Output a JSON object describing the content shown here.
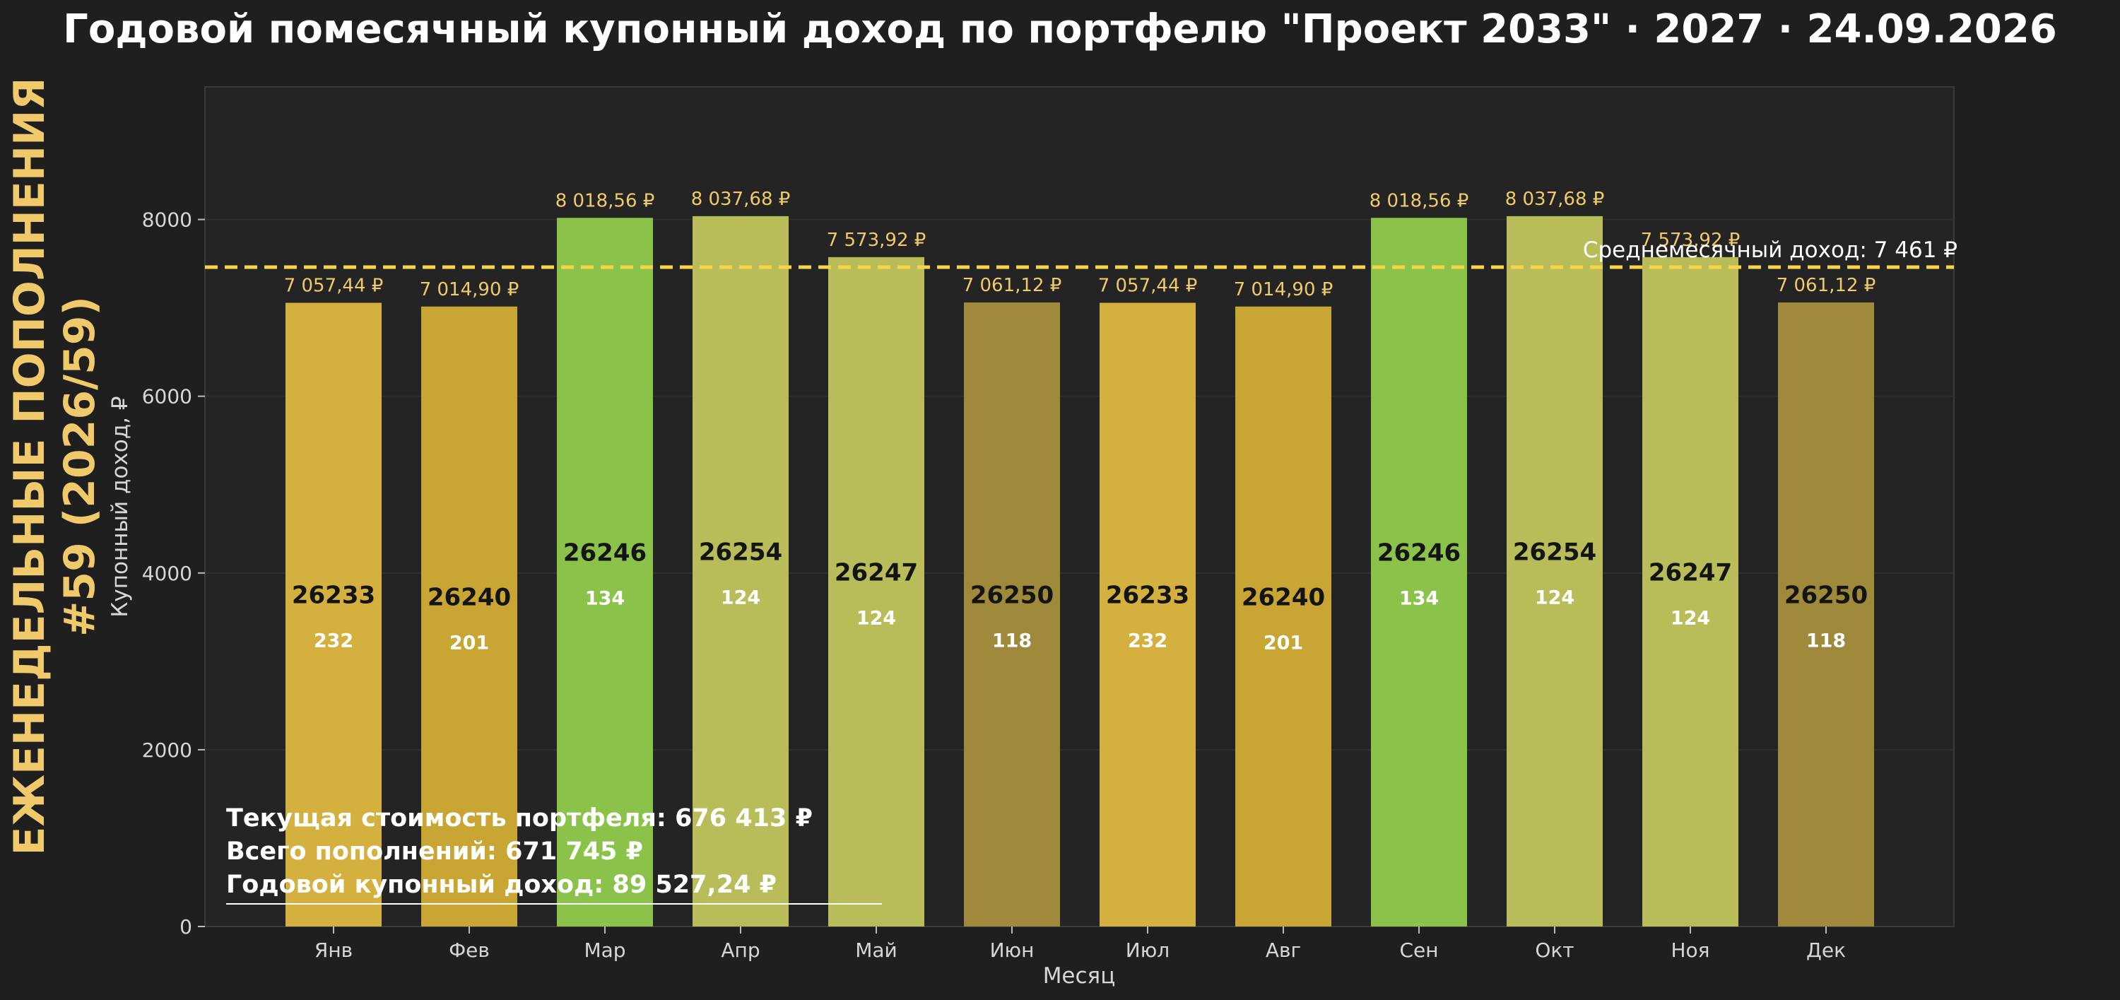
{
  "chart_data": {
    "type": "bar",
    "title": "Годовой помесячный купонный доход по портфелю \"Проект 2033\" · 2027 · 24.09.2026",
    "side_title_line1": "ЕЖЕНЕДЕЛЬНЫЕ ПОПОЛНЕНИЯ",
    "side_title_line2": "#59 (2026/59)",
    "xlabel": "Месяц",
    "ylabel": "Купонный доход, ₽",
    "ylim": [
      0,
      9500
    ],
    "yticks": [
      0,
      2000,
      4000,
      6000,
      8000
    ],
    "grid": true,
    "categories": [
      "Янв",
      "Фев",
      "Мар",
      "Апр",
      "Май",
      "Июн",
      "Июл",
      "Авг",
      "Сен",
      "Окт",
      "Ноя",
      "Дек"
    ],
    "values": [
      7057.44,
      7014.9,
      8018.56,
      8037.68,
      7573.92,
      7061.12,
      7057.44,
      7014.9,
      8018.56,
      8037.68,
      7573.92,
      7061.12
    ],
    "value_labels": [
      "7 057,44 ₽",
      "7 014,90 ₽",
      "8 018,56 ₽",
      "8 037,68 ₽",
      "7 573,92 ₽",
      "7 061,12 ₽",
      "7 057,44 ₽",
      "7 014,90 ₽",
      "8 018,56 ₽",
      "8 037,68 ₽",
      "7 573,92 ₽",
      "7 061,12 ₽"
    ],
    "bar_codes": [
      "26233",
      "26240",
      "26246",
      "26254",
      "26247",
      "26250",
      "26233",
      "26240",
      "26246",
      "26254",
      "26247",
      "26250"
    ],
    "bar_counts": [
      "232",
      "201",
      "134",
      "124",
      "124",
      "118",
      "232",
      "201",
      "134",
      "124",
      "124",
      "118"
    ],
    "bar_colors": [
      "#d4b03f",
      "#c9a533",
      "#8bc34a",
      "#b8bd5a",
      "#b8bd5a",
      "#9e8a3a",
      "#d4b03f",
      "#c9a533",
      "#8bc34a",
      "#b8bd5a",
      "#b8bd5a",
      "#9e8a3a"
    ],
    "average": {
      "value": 7461,
      "label": "Среднемесячный доход: 7 461 ₽",
      "color": "#f5d547"
    },
    "summary": [
      "Текущая стоимость портфеля: 676 413 ₽",
      "Всего пополнений: 671 745 ₽",
      "Годовой купонный доход: 89 527,24 ₽"
    ],
    "colors": {
      "background": "#1f1f1f",
      "plot_background": "#242424",
      "grid": "#2e2e2e",
      "value_label": "#f0c96a",
      "side_title": "#f0c96a"
    }
  }
}
